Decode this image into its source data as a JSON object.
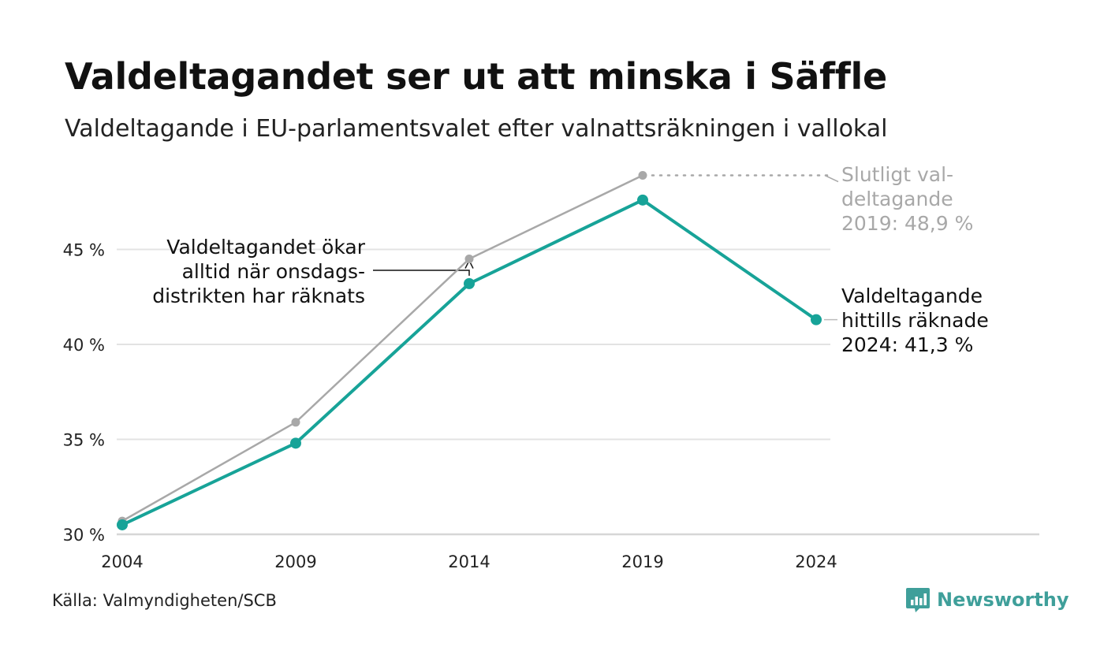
{
  "title": "Valdeltagandet ser ut att minska i Säffle",
  "subtitle": "Valdeltagande i EU-parlamentsvalet efter valnattsräkningen i vallokal",
  "source": "Källa: Valmyndigheten/SCB",
  "brand": {
    "name": "Newsworthy",
    "icon": "newsworthy-logo-icon",
    "color": "#3f9f9a"
  },
  "chart_data": {
    "type": "line",
    "x": [
      "2004",
      "2009",
      "2014",
      "2019",
      "2024"
    ],
    "ylim": [
      30,
      49
    ],
    "yticks": [
      30,
      35,
      40,
      45
    ],
    "ytick_labels": [
      "30 %",
      "35 %",
      "40 %",
      "45 %"
    ],
    "grid": true,
    "xlabel": "",
    "ylabel": "",
    "series": [
      {
        "name": "",
        "color": "#a8a8a8",
        "values": [
          30.7,
          35.9,
          44.5,
          48.9,
          null
        ]
      },
      {
        "name": "",
        "color": "#17a398",
        "values": [
          30.5,
          34.8,
          43.2,
          47.6,
          41.3
        ]
      }
    ],
    "annotations": {
      "wednesday": [
        "Valdeltagandet ökar",
        "alltid när onsdags-",
        "distrikten har räknats"
      ],
      "final_2019": [
        "Slutligt val-",
        "deltagande",
        "2019: 48,9 %"
      ],
      "counted_2024": [
        "Valdeltagande",
        "hittills räknade",
        "2024: 41,3 %"
      ]
    }
  }
}
